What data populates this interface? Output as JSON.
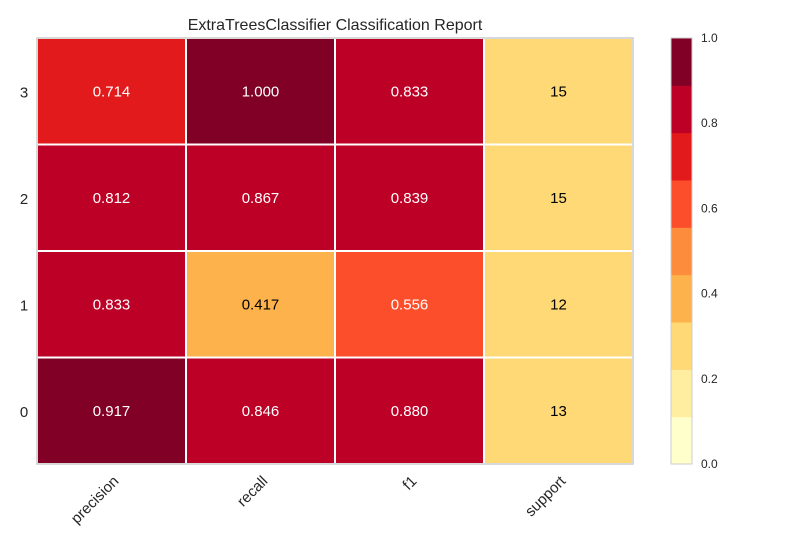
{
  "chart_data": {
    "type": "heatmap",
    "title": "ExtraTreesClassifier Classification Report",
    "columns": [
      "precision",
      "recall",
      "f1",
      "support"
    ],
    "rows": [
      "3",
      "2",
      "1",
      "0"
    ],
    "values": [
      [
        0.714,
        1.0,
        0.833,
        15
      ],
      [
        0.812,
        0.867,
        0.839,
        15
      ],
      [
        0.833,
        0.417,
        0.556,
        12
      ],
      [
        0.917,
        0.846,
        0.88,
        13
      ]
    ],
    "cell_labels": [
      [
        "0.714",
        "1.000",
        "0.833",
        "15"
      ],
      [
        "0.812",
        "0.867",
        "0.839",
        "15"
      ],
      [
        "0.833",
        "0.417",
        "0.556",
        "12"
      ],
      [
        "0.917",
        "0.846",
        "0.880",
        "13"
      ]
    ],
    "color_values": [
      [
        0.714,
        1.0,
        0.833,
        0.3
      ],
      [
        0.812,
        0.867,
        0.839,
        0.3
      ],
      [
        0.833,
        0.417,
        0.556,
        0.24
      ],
      [
        0.917,
        0.846,
        0.88,
        0.26
      ]
    ],
    "colorbar": {
      "min": 0.0,
      "max": 1.0,
      "ticks": [
        "0.0",
        "0.2",
        "0.4",
        "0.6",
        "0.8",
        "1.0"
      ],
      "colors": [
        "#ffffcc",
        "#ffeda0",
        "#fed976",
        "#feb24c",
        "#fd8d3c",
        "#fc4e2a",
        "#e31a1c",
        "#bd0026",
        "#800026"
      ]
    },
    "colormap": "YlOrRd",
    "grid": true
  }
}
